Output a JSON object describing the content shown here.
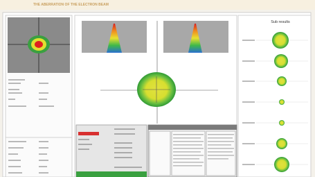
{
  "header": {
    "title": "THE ABERRATION OF THE ELECTRON BEAM"
  },
  "results_panel": {
    "title": "Sub results"
  }
}
